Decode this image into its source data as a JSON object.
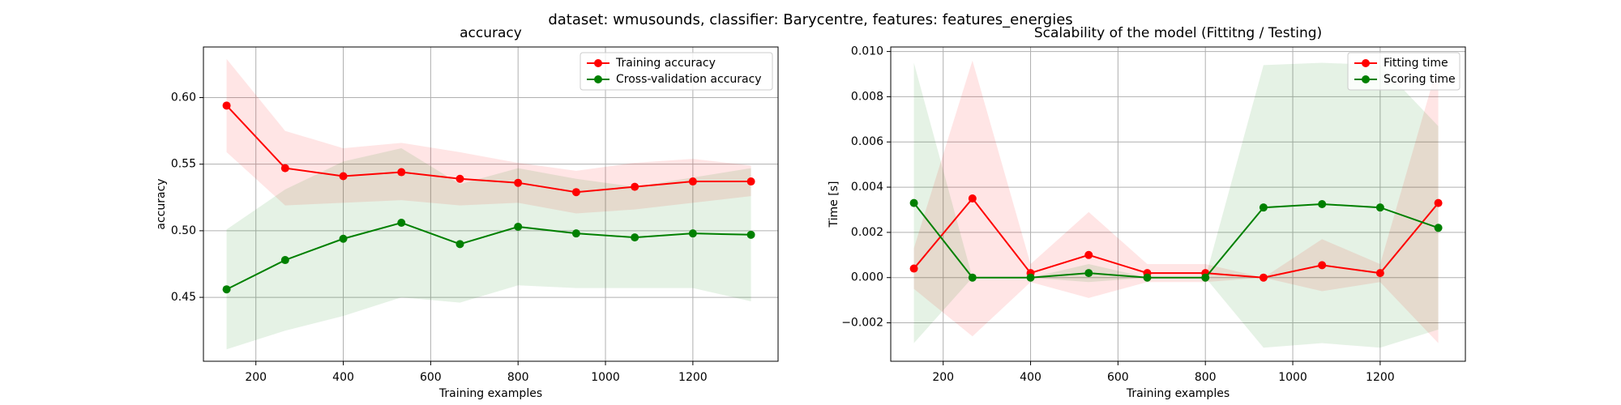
{
  "figure": {
    "suptitle": "dataset: wmusounds, classifier: Barycentre, features: features_energies"
  },
  "chart_data": [
    {
      "type": "line",
      "title": "accuracy",
      "xlabel": "Training examples",
      "ylabel": "accuracy",
      "xlim": [
        80,
        1395
      ],
      "ylim": [
        0.402,
        0.638
      ],
      "xticks": [
        200,
        400,
        600,
        800,
        1000,
        1200
      ],
      "xtick_labels": [
        "200",
        "400",
        "600",
        "800",
        "1000",
        "1200"
      ],
      "yticks": [
        0.45,
        0.5,
        0.55,
        0.6
      ],
      "ytick_labels": [
        "0.45",
        "0.50",
        "0.55",
        "0.60"
      ],
      "grid": true,
      "legend_position": "top-right",
      "x": [
        133,
        267,
        400,
        533,
        667,
        800,
        933,
        1067,
        1200,
        1333
      ],
      "series": [
        {
          "name": "Training accuracy",
          "color": "#ff0000",
          "band_color": "#ffb3b3",
          "values": [
            0.594,
            0.547,
            0.541,
            0.544,
            0.539,
            0.536,
            0.529,
            0.533,
            0.537,
            0.537
          ],
          "band_upper": [
            0.629,
            0.575,
            0.562,
            0.566,
            0.559,
            0.551,
            0.545,
            0.551,
            0.554,
            0.549
          ],
          "band_lower": [
            0.559,
            0.519,
            0.521,
            0.523,
            0.519,
            0.521,
            0.513,
            0.516,
            0.521,
            0.526
          ]
        },
        {
          "name": "Cross-validation accuracy",
          "color": "#008000",
          "band_color": "#b3e0b3",
          "values": [
            0.456,
            0.478,
            0.494,
            0.506,
            0.49,
            0.503,
            0.498,
            0.495,
            0.498,
            0.497
          ],
          "band_upper": [
            0.501,
            0.531,
            0.552,
            0.562,
            0.535,
            0.547,
            0.539,
            0.533,
            0.54,
            0.547
          ],
          "band_lower": [
            0.411,
            0.425,
            0.436,
            0.45,
            0.446,
            0.459,
            0.457,
            0.457,
            0.457,
            0.447
          ]
        }
      ]
    },
    {
      "type": "line",
      "title": "Scalability of the model (Fittitng / Testing)",
      "xlabel": "Training examples",
      "ylabel": "Time [s]",
      "xlim": [
        80,
        1395
      ],
      "ylim": [
        -0.0037,
        0.0102
      ],
      "xticks": [
        200,
        400,
        600,
        800,
        1000,
        1200
      ],
      "xtick_labels": [
        "200",
        "400",
        "600",
        "800",
        "1000",
        "1200"
      ],
      "yticks": [
        -0.002,
        0,
        0.002,
        0.004,
        0.006,
        0.008,
        0.01
      ],
      "ytick_labels": [
        "−0.002",
        "0.000",
        "0.002",
        "0.004",
        "0.006",
        "0.008",
        "0.010"
      ],
      "grid": true,
      "legend_position": "top-right",
      "x": [
        133,
        267,
        400,
        533,
        667,
        800,
        933,
        1067,
        1200,
        1333
      ],
      "series": [
        {
          "name": "Fitting time",
          "color": "#ff0000",
          "band_color": "#ffb3b3",
          "values": [
            0.0004,
            0.0035,
            0.0002,
            0.001,
            0.0002,
            0.0002,
            0.0,
            0.00055,
            0.0002,
            0.0033
          ],
          "band_upper": [
            0.0013,
            0.0096,
            0.0006,
            0.0029,
            0.0006,
            0.0006,
            0.0,
            0.0017,
            0.0006,
            0.0095
          ],
          "band_lower": [
            -0.0005,
            -0.0026,
            -0.0002,
            -0.0009,
            -0.0002,
            -0.0002,
            0.0,
            -0.0006,
            -0.0002,
            -0.0029
          ]
        },
        {
          "name": "Scoring time",
          "color": "#008000",
          "band_color": "#b3e0b3",
          "values": [
            0.0033,
            0.0,
            0.0,
            0.0002,
            0.0,
            0.0,
            0.0031,
            0.00325,
            0.0031,
            0.0022
          ],
          "band_upper": [
            0.0095,
            0.0,
            0.0,
            0.0006,
            0.0,
            0.0,
            0.0094,
            0.0095,
            0.0094,
            0.0067
          ],
          "band_lower": [
            -0.0029,
            0.0,
            0.0,
            -0.0002,
            0.0,
            0.0,
            -0.0031,
            -0.0029,
            -0.0031,
            -0.0023
          ]
        }
      ]
    }
  ]
}
